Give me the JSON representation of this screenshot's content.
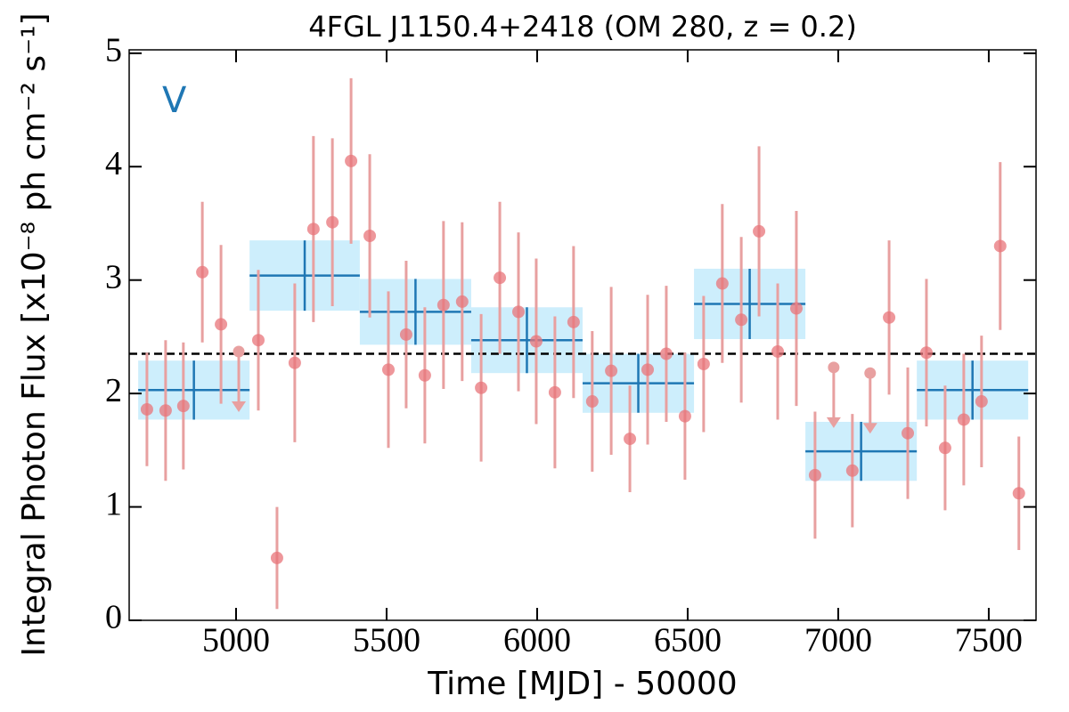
{
  "chart_data": {
    "type": "scatter",
    "title": "4FGL J1150.4+2418 (OM 280, z = 0.2)",
    "xlabel": "Time [MJD] - 50000",
    "ylabel": "Integral Photon Flux [x10⁻⁸ ph cm⁻² s⁻¹]",
    "annotation": "V",
    "annotation_color": "#1f77b4",
    "xlim": [
      4645,
      7657
    ],
    "ylim": [
      0,
      5.03
    ],
    "xticks": [
      5000,
      5500,
      6000,
      6500,
      7000,
      7500
    ],
    "yticks": [
      0,
      1,
      2,
      3,
      4,
      5
    ],
    "series": [
      {
        "color": "#e8747a",
        "error_color": "#e8a0a0",
        "x": [
          4704,
          4766,
          4825,
          4888,
          4950,
          5074,
          5136,
          5195,
          5257,
          5320,
          5382,
          5444,
          5506,
          5565,
          5627,
          5689,
          5751,
          5814,
          5876,
          5938,
          5997,
          6059,
          6121,
          6183,
          6246,
          6308,
          6367,
          6429,
          6491,
          6553,
          6615,
          6678,
          6737,
          6799,
          6861,
          6923,
          7047,
          7169,
          7231,
          7293,
          7355,
          7417,
          7476,
          7538,
          7600
        ],
        "values": [
          1.86,
          1.85,
          1.89,
          3.07,
          2.61,
          2.47,
          0.55,
          2.27,
          3.45,
          3.51,
          4.05,
          3.39,
          2.21,
          2.52,
          2.16,
          2.78,
          2.81,
          2.05,
          3.02,
          2.72,
          2.46,
          2.01,
          2.63,
          1.93,
          2.2,
          1.6,
          2.21,
          2.35,
          1.8,
          2.26,
          2.97,
          2.65,
          3.43,
          2.37,
          2.75,
          1.28,
          1.32,
          2.67,
          1.65,
          2.36,
          1.52,
          1.77,
          1.93,
          3.3,
          1.12
        ],
        "errors": [
          0.5,
          0.62,
          0.56,
          0.62,
          0.7,
          0.62,
          0.45,
          0.7,
          0.82,
          0.74,
          0.73,
          0.72,
          0.69,
          0.65,
          0.6,
          0.74,
          0.7,
          0.65,
          0.67,
          0.7,
          0.73,
          0.67,
          0.67,
          0.62,
          0.74,
          0.47,
          0.66,
          0.6,
          0.56,
          0.6,
          0.7,
          0.73,
          0.75,
          0.6,
          0.86,
          0.56,
          0.5,
          0.68,
          0.58,
          0.65,
          0.55,
          0.58,
          0.58,
          0.74,
          0.5
        ]
      },
      {
        "color": "#e8a0a0",
        "upper_limit": true,
        "x": [
          5009,
          6985,
          7106
        ],
        "values": [
          2.37,
          2.23,
          2.18
        ]
      }
    ],
    "bins": {
      "color": "#1f77b4",
      "fill": "#cdeefc",
      "edges": [
        4675,
        5045,
        5411,
        5781,
        6151,
        6521,
        6891,
        7261,
        7631
      ],
      "values": [
        2.03,
        3.04,
        2.72,
        2.47,
        2.09,
        2.79,
        1.49,
        2.03
      ],
      "errors": [
        0.26,
        0.31,
        0.29,
        0.29,
        0.26,
        0.31,
        0.26,
        0.26
      ]
    },
    "hline": {
      "value": 2.35,
      "color": "#000000"
    }
  }
}
